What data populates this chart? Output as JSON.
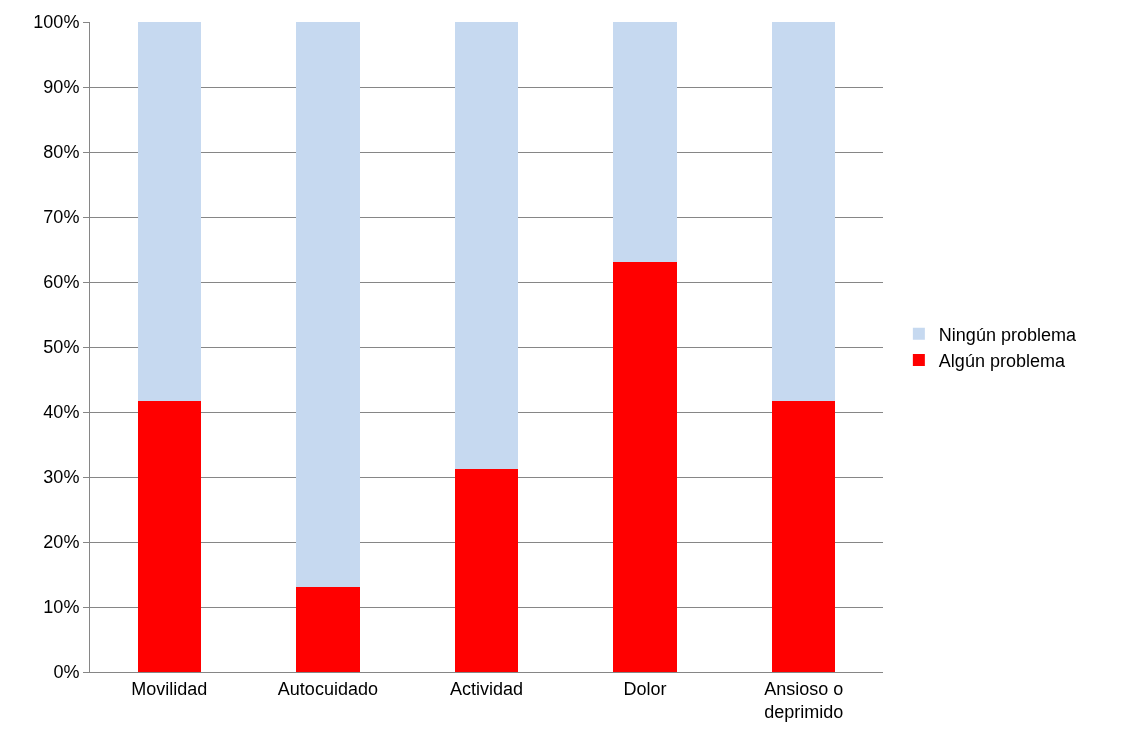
{
  "chart_data": {
    "type": "bar",
    "stacked": true,
    "categories": [
      "Movilidad",
      "Autocuidado",
      "Actividad",
      "Dolor",
      "Ansioso o deprimido"
    ],
    "series": [
      {
        "name": "Algún problema",
        "color": "#ff0000",
        "values": [
          41.7,
          13.1,
          31.3,
          63.1,
          41.7
        ]
      },
      {
        "name": "Ningún problema",
        "color": "#c6d9f0",
        "values": [
          58.3,
          86.9,
          68.7,
          36.9,
          58.3
        ]
      }
    ],
    "ylim": [
      0,
      100
    ],
    "yticks": [
      {
        "value": 0,
        "label": "0%"
      },
      {
        "value": 10,
        "label": "10%"
      },
      {
        "value": 20,
        "label": "20%"
      },
      {
        "value": 30,
        "label": "30%"
      },
      {
        "value": 40,
        "label": "40%"
      },
      {
        "value": 50,
        "label": "50%"
      },
      {
        "value": 60,
        "label": "60%"
      },
      {
        "value": 70,
        "label": "70%"
      },
      {
        "value": 80,
        "label": "80%"
      },
      {
        "value": 90,
        "label": "90%"
      },
      {
        "value": 100,
        "label": "100%"
      }
    ],
    "grid": "y",
    "legend": "right"
  }
}
